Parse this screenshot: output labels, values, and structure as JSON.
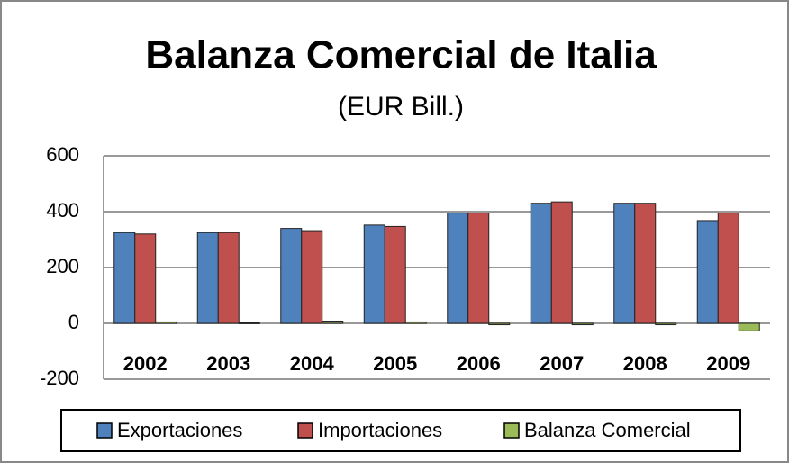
{
  "chart_data": {
    "type": "bar",
    "title": "Balanza Comercial de Italia",
    "subtitle": "(EUR Bill.)",
    "categories": [
      "2002",
      "2003",
      "2004",
      "2005",
      "2006",
      "2007",
      "2008",
      "2009"
    ],
    "series": [
      {
        "name": "Exportaciones",
        "color": "#4f81bd",
        "values": [
          325,
          325,
          340,
          352,
          395,
          430,
          430,
          368
        ]
      },
      {
        "name": "Importaciones",
        "color": "#c0504d",
        "values": [
          320,
          325,
          332,
          347,
          395,
          435,
          430,
          395
        ]
      },
      {
        "name": "Balanza Comercial",
        "color": "#9bbb59",
        "values": [
          5,
          2,
          8,
          5,
          -5,
          -5,
          -5,
          -27
        ]
      }
    ],
    "ylim": [
      -200,
      600
    ],
    "yticks": [
      -200,
      0,
      200,
      400,
      600
    ],
    "grid": true,
    "legend": "bottom"
  }
}
